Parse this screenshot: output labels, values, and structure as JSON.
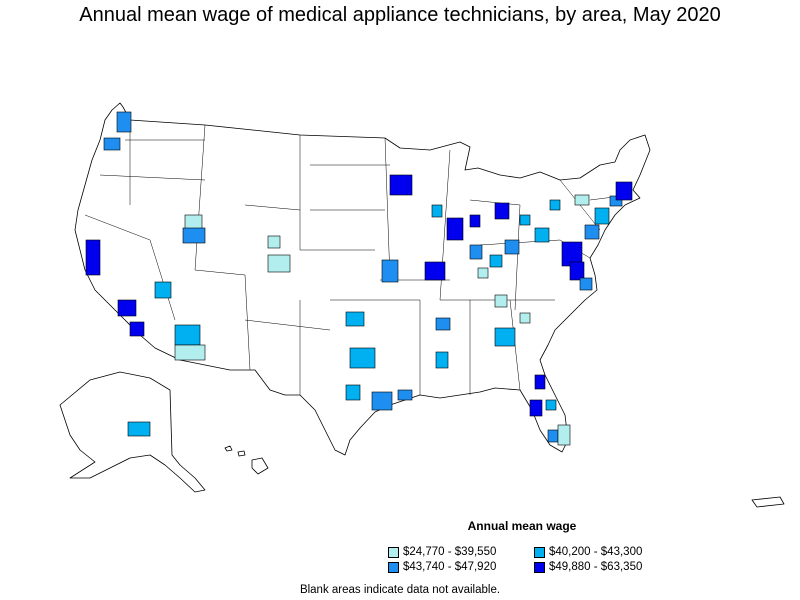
{
  "title": "Annual mean wage of medical appliance technicians, by area, May 2020",
  "legend": {
    "title": "Annual mean wage",
    "items": [
      {
        "label": "$24,770 - $39,550",
        "color": "#b3eeee"
      },
      {
        "label": "$40,200 - $43,300",
        "color": "#00b0f0"
      },
      {
        "label": "$43,740 - $47,920",
        "color": "#1e8ff0"
      },
      {
        "label": "$49,880 - $63,350",
        "color": "#0000ee"
      }
    ]
  },
  "footnote": "Blank areas indicate data not available."
}
